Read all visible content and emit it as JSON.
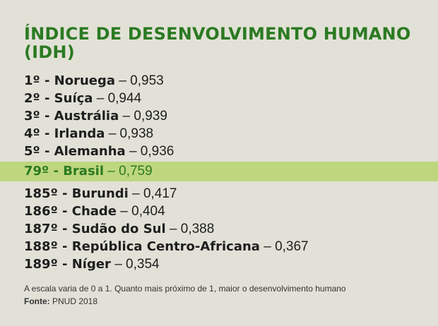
{
  "title": "ÍNDICE DE DESENVOLVIMENTO HUMANO (IDH)",
  "rankings": [
    {
      "rank": "1º - Noruega",
      "value": " – 0,953"
    },
    {
      "rank": "2º - Suíça",
      "value": " – 0,944"
    },
    {
      "rank": "3º - Austrália",
      "value": " – 0,939"
    },
    {
      "rank": "4º - Irlanda",
      "value": " – 0,938"
    },
    {
      "rank": "5º - Alemanha",
      "value": " – 0,936"
    },
    {
      "rank": "79º - Brasil",
      "value": " – 0,759"
    },
    {
      "rank": "185º - Burundi",
      "value": " – 0,417"
    },
    {
      "rank": "186º - Chade",
      "value": " – 0,404"
    },
    {
      "rank": "187º - Sudão do Sul",
      "value": " – 0,388"
    },
    {
      "rank": "188º - República Centro-Africana",
      "value": " – 0,367"
    },
    {
      "rank": "189º - Níger",
      "value": " – 0,354"
    }
  ],
  "note": "A escala varia de 0 a 1. Quanto mais próximo de 1, maior o desenvolvimento humano",
  "source": {
    "label": "Fonte:",
    "value": " PNUD 2018"
  },
  "colors": {
    "background": "#e2e1d7",
    "title": "#2b7a22",
    "highlight_band": "#bed77e",
    "highlight_text": "#2b7a22",
    "text": "#1e1e1e"
  }
}
